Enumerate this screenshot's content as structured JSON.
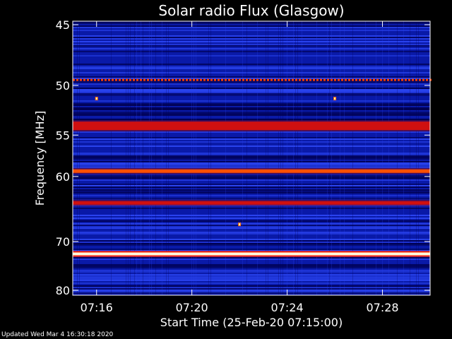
{
  "chart_data": {
    "type": "heatmap",
    "title": "Solar radio Flux (Glasgow)",
    "xlabel": "Start Time (25-Feb-20 07:15:00)",
    "ylabel": "Frequency [MHz]",
    "x_ticks": [
      "07:16",
      "07:20",
      "07:24",
      "07:28"
    ],
    "x_tick_minutes": [
      1,
      5,
      9,
      13
    ],
    "xlim_minutes": [
      0,
      15
    ],
    "y_ticks": [
      45,
      50,
      55,
      60,
      70,
      80
    ],
    "ylim_mhz": [
      45,
      80
    ],
    "y_scale": "reciprocal",
    "colormap": [
      "#000050",
      "#0a1aa8",
      "#2a44f0",
      "#a01060",
      "#e01010",
      "#ff6000",
      "#ffffff"
    ],
    "horizontal_bands": [
      {
        "freq_mhz": 49.5,
        "intensity": "high, dashed"
      },
      {
        "freq_mhz": 54.0,
        "intensity": "high"
      },
      {
        "freq_mhz": 59.3,
        "intensity": "very high"
      },
      {
        "freq_mhz": 63.7,
        "intensity": "high"
      },
      {
        "freq_mhz": 72.3,
        "intensity": "saturated"
      }
    ],
    "point_sources": [
      {
        "time_min": 1.0,
        "freq_mhz": 51.2
      },
      {
        "time_min": 11.0,
        "freq_mhz": 51.2
      },
      {
        "time_min": 7.0,
        "freq_mhz": 67.0
      }
    ]
  },
  "footer": "Updated Wed Mar  4 16:30:18 2020"
}
